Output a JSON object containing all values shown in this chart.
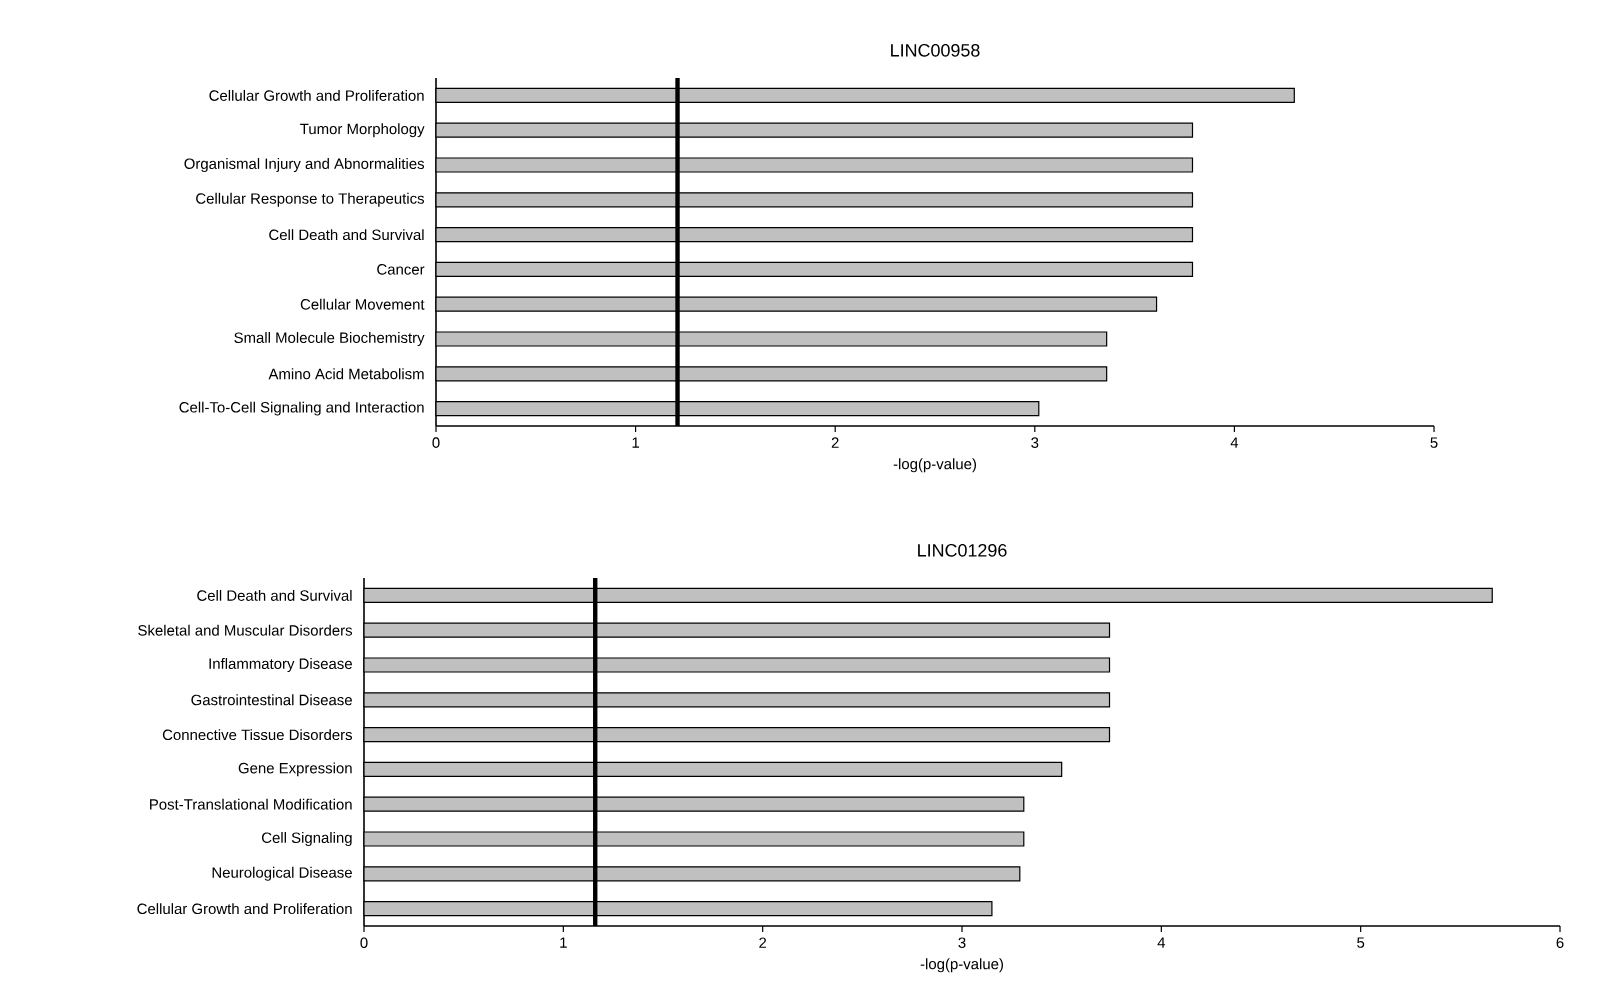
{
  "chart_data": [
    {
      "type": "bar",
      "orientation": "horizontal",
      "title": "LINC00958",
      "xlabel": "-log(p-value)",
      "categories": [
        "Cellular Growth and Proliferation",
        "Tumor Morphology",
        "Organismal Injury and Abnormalities",
        "Cellular Response to Therapeutics",
        "Cell Death and Survival",
        "Cancer",
        "Cellular Movement",
        "Small Molecule Biochemistry",
        "Amino Acid Metabolism",
        "Cell-To-Cell Signaling and Interaction"
      ],
      "values": [
        4.3,
        3.79,
        3.79,
        3.79,
        3.79,
        3.79,
        3.61,
        3.36,
        3.36,
        3.02
      ],
      "color": "#c0c0c0",
      "xlim": [
        0,
        5
      ],
      "xticks": [
        0,
        1,
        2,
        3,
        4,
        5
      ],
      "ref_lines": [
        {
          "axis": "x",
          "value": 1.21,
          "color": "#000000"
        }
      ]
    },
    {
      "type": "bar",
      "orientation": "horizontal",
      "title": "LINC01296",
      "xlabel": "-log(p-value)",
      "categories": [
        "Cell Death and Survival",
        "Skeletal and Muscular Disorders",
        "Inflammatory Disease",
        "Gastrointestinal Disease",
        "Connective Tissue Disorders",
        "Gene Expression",
        "Post-Translational Modification",
        "Cell Signaling",
        "Neurological Disease",
        "Cellular Growth and Proliferation"
      ],
      "values": [
        5.66,
        3.74,
        3.74,
        3.74,
        3.74,
        3.5,
        3.31,
        3.31,
        3.29,
        3.15
      ],
      "color": "#c0c0c0",
      "xlim": [
        0,
        6
      ],
      "xticks": [
        0,
        1,
        2,
        3,
        4,
        5,
        6
      ],
      "ref_lines": [
        {
          "axis": "x",
          "value": 1.16,
          "color": "#000000"
        }
      ]
    }
  ]
}
